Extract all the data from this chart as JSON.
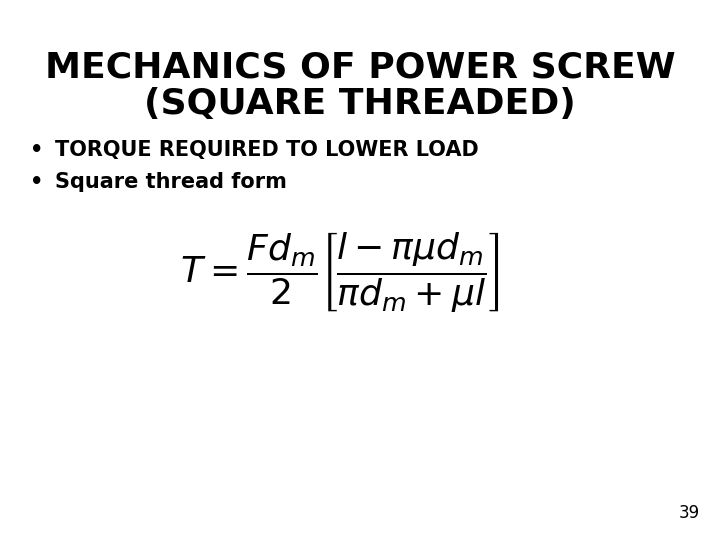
{
  "title_line1": "MECHANICS OF POWER SCREW",
  "title_line2": "(SQUARE THREADED)",
  "bullet1": "TORQUE REQUIRED TO LOWER LOAD",
  "bullet2": "Square thread form",
  "formula": "T=\\dfrac{Fd_m}{2}\\left[\\dfrac{l-\\pi\\mu d_m}{\\pi d_m+\\mu l}\\right]",
  "page_number": "39",
  "bg_color": "#ffffff",
  "text_color": "#000000",
  "title_fontsize": 26,
  "bullet1_fontsize": 15,
  "bullet2_fontsize": 15,
  "formula_fontsize": 26,
  "page_num_fontsize": 12
}
